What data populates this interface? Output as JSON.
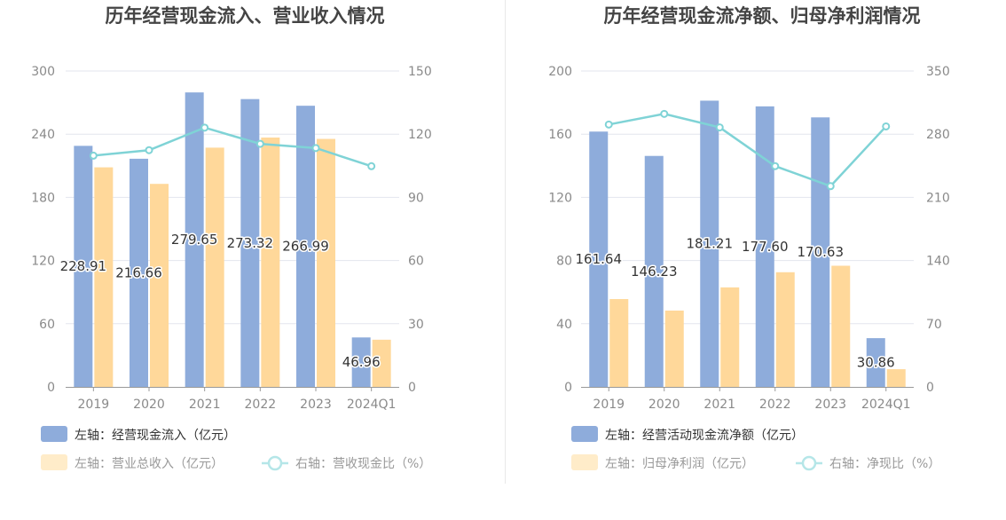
{
  "colors": {
    "bar_primary": "#8eacdb",
    "bar_secondary": "#ffd89a",
    "line": "#7fd3d6",
    "legend_text_active": "#333333",
    "legend_text_muted": "#999999"
  },
  "chart_data": [
    {
      "type": "bar",
      "title": "历年经营现金流入、营业收入情况",
      "categories": [
        "2019",
        "2020",
        "2021",
        "2022",
        "2023",
        "2024Q1"
      ],
      "left_axis": {
        "ylim": [
          0,
          300
        ],
        "ticks": [
          "0",
          "60",
          "120",
          "180",
          "240",
          "300"
        ]
      },
      "right_axis": {
        "ylim": [
          0,
          150
        ],
        "ticks": [
          "0",
          "30",
          "60",
          "90",
          "120",
          "150"
        ]
      },
      "grid": true,
      "legend_position": "bottom-left",
      "series": [
        {
          "name": "左轴：经营现金流入（亿元）",
          "type": "bar",
          "axis": "left",
          "values": [
            228.91,
            216.66,
            279.65,
            273.32,
            266.99,
            46.96
          ],
          "labels": [
            "228.91",
            "216.66",
            "279.65",
            "273.32",
            "266.99",
            "46.96"
          ]
        },
        {
          "name": "左轴：营业总收入（亿元）",
          "type": "bar",
          "axis": "left",
          "values": [
            208.5,
            192.8,
            227.2,
            236.8,
            235.5,
            44.8
          ]
        },
        {
          "name": "右轴：营收现金比（%）",
          "type": "line",
          "axis": "right",
          "values": [
            109.8,
            112.4,
            123.1,
            115.4,
            113.4,
            104.8
          ]
        }
      ]
    },
    {
      "type": "bar",
      "title": "历年经营现金流净额、归母净利润情况",
      "categories": [
        "2019",
        "2020",
        "2021",
        "2022",
        "2023",
        "2024Q1"
      ],
      "left_axis": {
        "ylim": [
          0,
          200
        ],
        "ticks": [
          "0",
          "40",
          "80",
          "120",
          "160",
          "200"
        ]
      },
      "right_axis": {
        "ylim": [
          0,
          350
        ],
        "ticks": [
          "0",
          "70",
          "140",
          "210",
          "280",
          "350"
        ]
      },
      "grid": true,
      "legend_position": "bottom-left",
      "series": [
        {
          "name": "左轴：经营活动现金流净额（亿元）",
          "type": "bar",
          "axis": "left",
          "values": [
            161.64,
            146.23,
            181.21,
            177.6,
            170.63,
            30.86
          ],
          "labels": [
            "161.64",
            "146.23",
            "181.21",
            "177.60",
            "170.63",
            "30.86"
          ]
        },
        {
          "name": "左轴：归母净利润（亿元）",
          "type": "bar",
          "axis": "left",
          "values": [
            55.6,
            48.3,
            63.0,
            72.6,
            76.7,
            11.2
          ]
        },
        {
          "name": "右轴：净现比（%）",
          "type": "line",
          "axis": "right",
          "values": [
            290.7,
            302.5,
            287.5,
            244.6,
            222.4,
            288.6
          ]
        }
      ]
    }
  ]
}
